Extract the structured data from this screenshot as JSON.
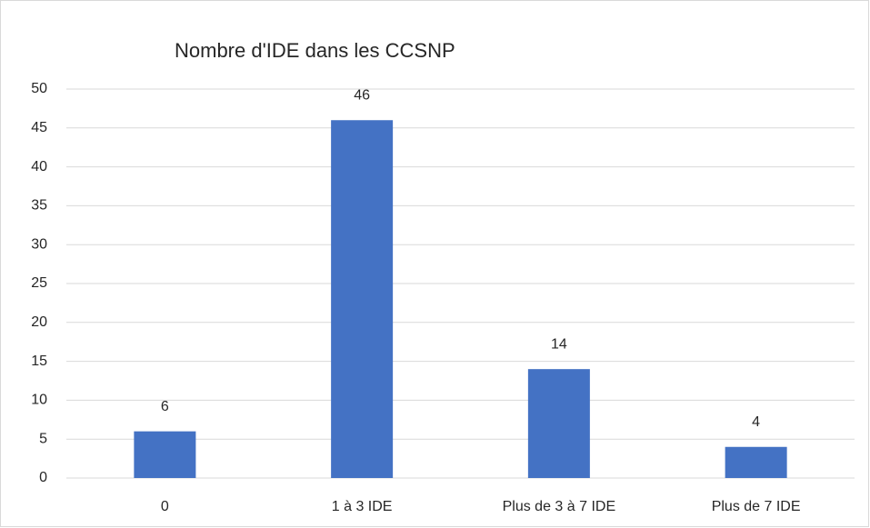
{
  "chart_data": {
    "type": "bar",
    "title": "Nombre d'IDE dans les CCSNP",
    "categories": [
      "0",
      "1 à 3 IDE",
      "Plus de 3 à 7 IDE",
      "Plus de 7 IDE"
    ],
    "values": [
      6,
      46,
      14,
      4
    ],
    "color": "#4472c4",
    "ylim": [
      0,
      50
    ],
    "yticks": [
      0,
      5,
      10,
      15,
      20,
      25,
      30,
      35,
      40,
      45,
      50
    ],
    "grid": true
  }
}
